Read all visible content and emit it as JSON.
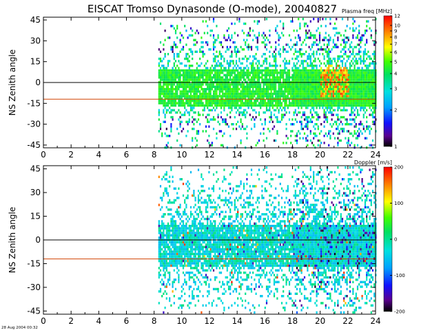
{
  "title": "EISCAT Tromso Dynasonde (O-mode),  20040827",
  "timestamp": "28 Aug 2004 00:32",
  "chart_data": [
    {
      "type": "heatmap",
      "panel": "top",
      "ylabel": "NS Zenith angle",
      "x_ticks": [
        "0",
        "2",
        "4",
        "6",
        "8",
        "10",
        "12",
        "14",
        "16",
        "18",
        "20",
        "22",
        "24"
      ],
      "y_ticks": [
        "45",
        "30",
        "15",
        "0",
        "-15",
        "-30",
        "-45"
      ],
      "xlim": [
        0,
        24
      ],
      "ylim": [
        -47,
        47
      ],
      "colorbar_label": "Plasma freq [MHz]",
      "colorbar_ticks": [
        "12",
        "10",
        "9",
        "8",
        "7",
        "6",
        "5",
        "4",
        "3",
        "2",
        "1"
      ],
      "colorbar_scale": "log",
      "colorbar_range": [
        1,
        12
      ],
      "data_start_hour": 8.3,
      "data_end_hour": 24,
      "reference_lines": [
        {
          "value": 0,
          "color": "#000000"
        },
        {
          "value": -12,
          "color": "#d04000"
        }
      ]
    },
    {
      "type": "heatmap",
      "panel": "bottom",
      "ylabel": "NS Zenith angle",
      "x_ticks": [
        "0",
        "2",
        "4",
        "6",
        "8",
        "10",
        "12",
        "14",
        "16",
        "18",
        "20",
        "22",
        "24"
      ],
      "y_ticks": [
        "45",
        "30",
        "15",
        "0",
        "-15",
        "-30",
        "-45"
      ],
      "xlim": [
        0,
        24
      ],
      "ylim": [
        -47,
        47
      ],
      "colorbar_label": "Doppler [m/s]",
      "colorbar_ticks": [
        "200",
        "100",
        "0",
        "-100",
        "-200"
      ],
      "colorbar_scale": "linear",
      "colorbar_range": [
        -200,
        200
      ],
      "data_start_hour": 8.3,
      "data_end_hour": 24,
      "reference_lines": [
        {
          "value": 0,
          "color": "#000000"
        },
        {
          "value": -12,
          "color": "#d04000"
        }
      ]
    }
  ]
}
